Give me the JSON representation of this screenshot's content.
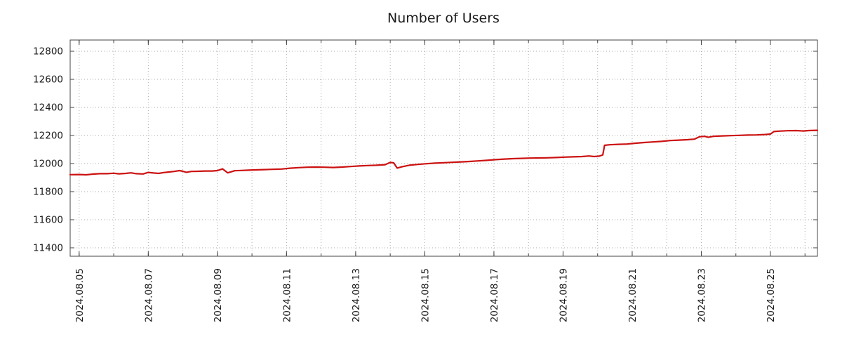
{
  "chart_data": {
    "type": "line",
    "title": "Number of Users",
    "xlabel": "",
    "ylabel": "",
    "grid": true,
    "legend": "none",
    "line_color": "#cc1111",
    "grid_color": "#aaaaaa",
    "border_color": "#444444",
    "xlim": [
      -0.26,
      21.36
    ],
    "ylim": [
      11340,
      12880
    ],
    "x_minor_step": 1,
    "x_tick_positions": [
      0,
      2,
      4,
      6,
      8,
      10,
      12,
      14,
      16,
      18,
      20
    ],
    "x_tick_labels": [
      "2024.08.05",
      "2024.08.07",
      "2024.08.09",
      "2024.08.11",
      "2024.08.13",
      "2024.08.15",
      "2024.08.17",
      "2024.08.19",
      "2024.08.21",
      "2024.08.23",
      "2024.08.25"
    ],
    "y_ticks": [
      11400,
      11600,
      11800,
      12000,
      12200,
      12400,
      12600,
      12800
    ],
    "series": [
      {
        "name": "Number of Users",
        "points": [
          [
            -0.26,
            11921
          ],
          [
            0.0,
            11922
          ],
          [
            0.2,
            11920
          ],
          [
            0.4,
            11925
          ],
          [
            0.6,
            11928
          ],
          [
            0.8,
            11928
          ],
          [
            1.0,
            11931
          ],
          [
            1.15,
            11927
          ],
          [
            1.35,
            11930
          ],
          [
            1.5,
            11934
          ],
          [
            1.65,
            11928
          ],
          [
            1.85,
            11926
          ],
          [
            2.0,
            11937
          ],
          [
            2.15,
            11933
          ],
          [
            2.3,
            11930
          ],
          [
            2.45,
            11936
          ],
          [
            2.6,
            11940
          ],
          [
            2.75,
            11944
          ],
          [
            2.9,
            11950
          ],
          [
            3.0,
            11945
          ],
          [
            3.1,
            11938
          ],
          [
            3.25,
            11944
          ],
          [
            3.45,
            11945
          ],
          [
            3.65,
            11947
          ],
          [
            3.85,
            11947
          ],
          [
            4.0,
            11950
          ],
          [
            4.15,
            11962
          ],
          [
            4.3,
            11934
          ],
          [
            4.5,
            11949
          ],
          [
            4.7,
            11951
          ],
          [
            4.9,
            11953
          ],
          [
            5.1,
            11955
          ],
          [
            5.35,
            11957
          ],
          [
            5.6,
            11959
          ],
          [
            5.85,
            11961
          ],
          [
            6.1,
            11967
          ],
          [
            6.35,
            11971
          ],
          [
            6.6,
            11974
          ],
          [
            6.85,
            11975
          ],
          [
            7.1,
            11974
          ],
          [
            7.35,
            11972
          ],
          [
            7.6,
            11975
          ],
          [
            7.85,
            11979
          ],
          [
            8.1,
            11983
          ],
          [
            8.35,
            11986
          ],
          [
            8.6,
            11988
          ],
          [
            8.85,
            11992
          ],
          [
            9.0,
            12008
          ],
          [
            9.1,
            12005
          ],
          [
            9.2,
            11968
          ],
          [
            9.35,
            11978
          ],
          [
            9.55,
            11988
          ],
          [
            9.8,
            11994
          ],
          [
            10.05,
            11999
          ],
          [
            10.3,
            12003
          ],
          [
            10.55,
            12006
          ],
          [
            10.8,
            12009
          ],
          [
            11.05,
            12012
          ],
          [
            11.3,
            12015
          ],
          [
            11.55,
            12019
          ],
          [
            11.8,
            12023
          ],
          [
            12.05,
            12028
          ],
          [
            12.3,
            12032
          ],
          [
            12.55,
            12035
          ],
          [
            12.8,
            12037
          ],
          [
            13.05,
            12039
          ],
          [
            13.3,
            12040
          ],
          [
            13.55,
            12041
          ],
          [
            13.8,
            12043
          ],
          [
            14.05,
            12046
          ],
          [
            14.3,
            12048
          ],
          [
            14.55,
            12050
          ],
          [
            14.75,
            12054
          ],
          [
            14.9,
            12050
          ],
          [
            15.05,
            12053
          ],
          [
            15.15,
            12062
          ],
          [
            15.2,
            12130
          ],
          [
            15.35,
            12134
          ],
          [
            15.6,
            12137
          ],
          [
            15.85,
            12139
          ],
          [
            16.1,
            12145
          ],
          [
            16.35,
            12150
          ],
          [
            16.6,
            12154
          ],
          [
            16.85,
            12158
          ],
          [
            17.1,
            12164
          ],
          [
            17.35,
            12167
          ],
          [
            17.6,
            12170
          ],
          [
            17.8,
            12174
          ],
          [
            17.95,
            12191
          ],
          [
            18.1,
            12194
          ],
          [
            18.2,
            12187
          ],
          [
            18.35,
            12194
          ],
          [
            18.6,
            12197
          ],
          [
            18.85,
            12199
          ],
          [
            19.1,
            12201
          ],
          [
            19.35,
            12203
          ],
          [
            19.6,
            12204
          ],
          [
            19.85,
            12207
          ],
          [
            20.0,
            12210
          ],
          [
            20.1,
            12228
          ],
          [
            20.25,
            12231
          ],
          [
            20.5,
            12234
          ],
          [
            20.75,
            12235
          ],
          [
            20.95,
            12232
          ],
          [
            21.1,
            12235
          ],
          [
            21.36,
            12237
          ]
        ]
      }
    ]
  }
}
